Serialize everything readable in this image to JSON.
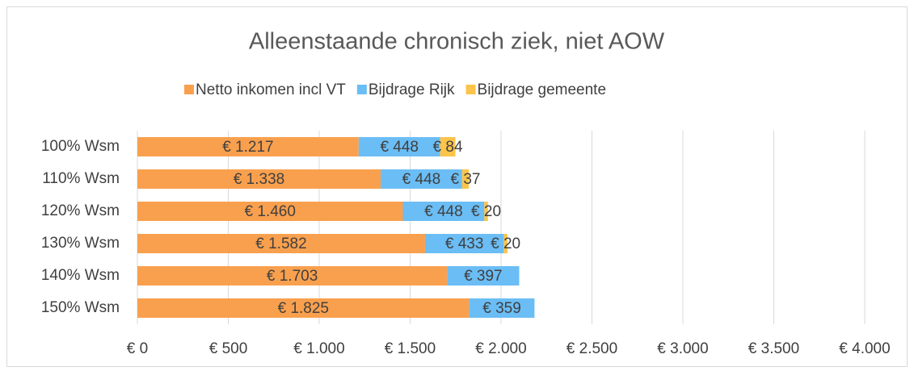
{
  "chart_data": {
    "type": "bar",
    "orientation": "horizontal",
    "stacked": true,
    "title": "Alleenstaande chronisch ziek, niet AOW",
    "categories": [
      "100% Wsm",
      "110% Wsm",
      "120% Wsm",
      "130% Wsm",
      "140% Wsm",
      "150% Wsm"
    ],
    "series": [
      {
        "name": "Netto inkomen incl VT",
        "color": "#f9a04e",
        "values": [
          1217,
          1338,
          1460,
          1582,
          1703,
          1825
        ],
        "value_labels": [
          "€ 1.217",
          "€ 1.338",
          "€ 1.460",
          "€ 1.582",
          "€ 1.703",
          "€ 1.825"
        ]
      },
      {
        "name": "Bijdrage Rijk",
        "color": "#6bbdf5",
        "values": [
          448,
          448,
          448,
          433,
          397,
          359
        ],
        "value_labels": [
          "€ 448",
          "€ 448",
          "€ 448",
          "€ 433",
          "€ 397",
          "€ 359"
        ]
      },
      {
        "name": "Bijdrage gemeente",
        "color": "#fcc44a",
        "values": [
          84,
          37,
          20,
          20,
          null,
          null
        ],
        "value_labels": [
          "€ 84",
          "€ 37",
          "€ 20",
          "€ 20",
          null,
          null
        ]
      }
    ],
    "xlim": [
      0,
      4000
    ],
    "xticks": [
      {
        "value": 0,
        "label": "€ 0"
      },
      {
        "value": 500,
        "label": "€ 500"
      },
      {
        "value": 1000,
        "label": "€ 1.000"
      },
      {
        "value": 1500,
        "label": "€ 1.500"
      },
      {
        "value": 2000,
        "label": "€ 2.000"
      },
      {
        "value": 2500,
        "label": "€ 2.500"
      },
      {
        "value": 3000,
        "label": "€ 3.000"
      },
      {
        "value": 3500,
        "label": "€ 3.500"
      },
      {
        "value": 4000,
        "label": "€ 4.000"
      }
    ],
    "grid": true,
    "legend": "top"
  }
}
